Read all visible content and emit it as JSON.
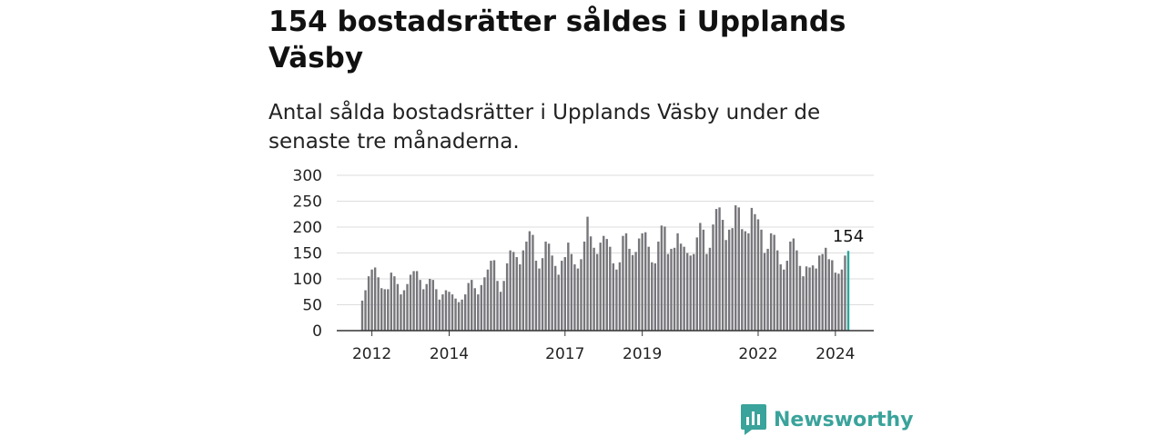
{
  "title": "154 bostadsrätter såldes i Upplands Väsby",
  "subtitle": "Antal sålda bostadsrätter i Upplands Väsby under de senaste tre månaderna.",
  "brand": "Newsworthy",
  "colors": {
    "bar": "#77767b",
    "highlight": "#2aa79b",
    "grid": "#dddddd",
    "axis": "#333333",
    "brand": "#3aa39b"
  },
  "chart_data": {
    "type": "bar",
    "ylim": [
      0,
      300
    ],
    "yticks": [
      0,
      50,
      100,
      150,
      200,
      250,
      300
    ],
    "xticks": [
      "2012",
      "2014",
      "2017",
      "2019",
      "2022",
      "2024"
    ],
    "xtick_index": [
      3,
      27,
      63,
      87,
      123,
      147
    ],
    "grid": true,
    "highlight_label": "154",
    "values": [
      58,
      78,
      105,
      118,
      122,
      103,
      82,
      80,
      80,
      112,
      105,
      90,
      70,
      78,
      90,
      108,
      115,
      115,
      98,
      80,
      90,
      100,
      98,
      80,
      60,
      70,
      78,
      75,
      70,
      62,
      55,
      60,
      70,
      92,
      98,
      82,
      70,
      88,
      103,
      118,
      135,
      136,
      96,
      75,
      96,
      130,
      155,
      152,
      142,
      128,
      155,
      172,
      192,
      185,
      135,
      120,
      140,
      172,
      168,
      145,
      125,
      108,
      135,
      142,
      170,
      148,
      128,
      120,
      138,
      172,
      220,
      182,
      160,
      148,
      170,
      183,
      177,
      162,
      130,
      118,
      132,
      183,
      188,
      158,
      146,
      152,
      178,
      188,
      190,
      162,
      132,
      130,
      172,
      203,
      201,
      148,
      158,
      160,
      188,
      168,
      162,
      150,
      145,
      148,
      180,
      208,
      195,
      148,
      160,
      205,
      235,
      238,
      214,
      175,
      195,
      198,
      242,
      238,
      196,
      192,
      188,
      237,
      225,
      215,
      195,
      150,
      158,
      188,
      185,
      155,
      128,
      118,
      135,
      172,
      178,
      155,
      125,
      105,
      124,
      122,
      126,
      120,
      145,
      148,
      160,
      138,
      136,
      112,
      110,
      118,
      145,
      154
    ]
  }
}
